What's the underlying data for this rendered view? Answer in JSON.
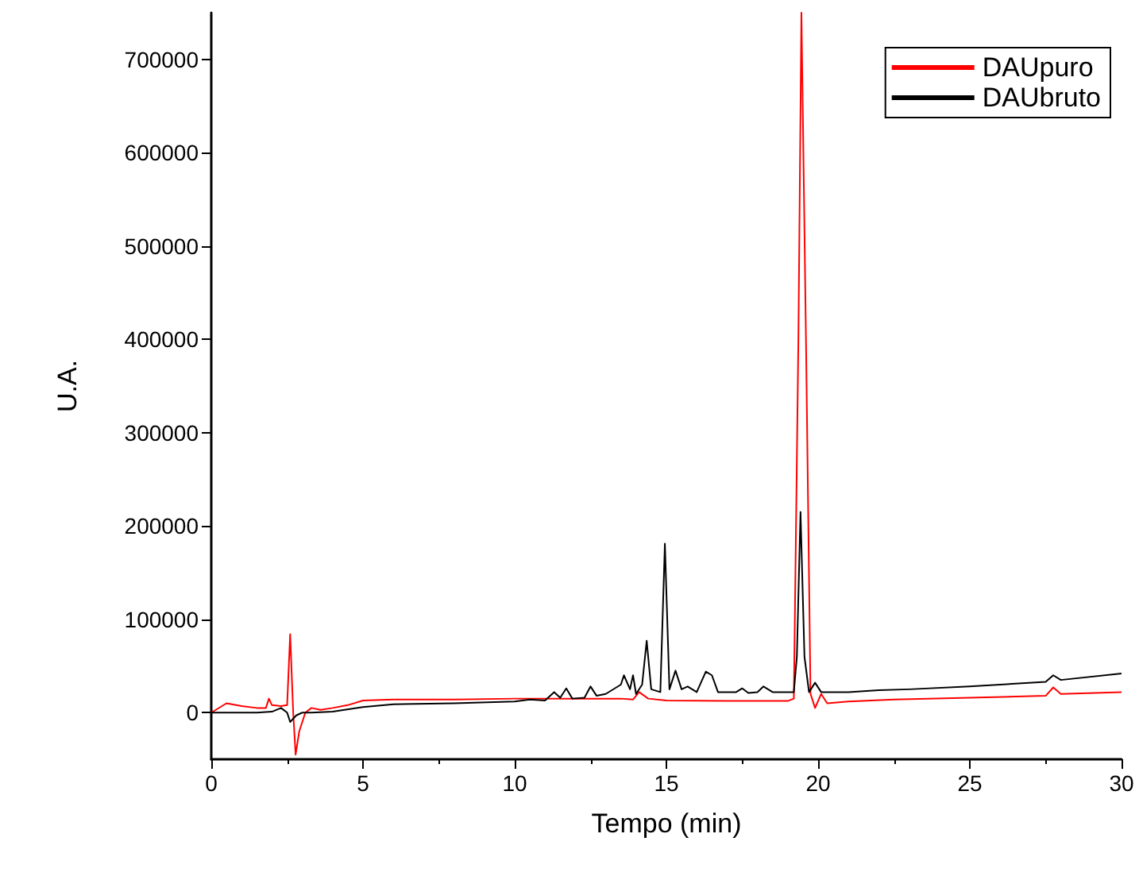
{
  "chart_data": {
    "type": "line",
    "xlabel": "Tempo (min)",
    "ylabel": "U.A.",
    "xlim": [
      0,
      30
    ],
    "xticks": [
      0,
      5,
      10,
      15,
      20,
      25,
      30
    ],
    "ylim": [
      -50000,
      750000
    ],
    "yticks": [
      0,
      100000,
      200000,
      300000,
      400000,
      500000,
      600000,
      700000
    ],
    "grid": false,
    "legend": "top right",
    "marker": "none",
    "line_style": "solid",
    "series": [
      {
        "name": "DAUpuro",
        "color": "#ff0000",
        "x": [
          0,
          0.5,
          1,
          1.5,
          1.8,
          1.9,
          2.0,
          2.3,
          2.5,
          2.6,
          2.7,
          2.78,
          2.9,
          3.1,
          3.3,
          3.6,
          4,
          4.5,
          5,
          6,
          8,
          10,
          12,
          13.5,
          13.9,
          14.1,
          14.4,
          15,
          17,
          19,
          19.2,
          19.35,
          19.45,
          19.6,
          19.75,
          19.9,
          20.1,
          20.3,
          21,
          22.5,
          25,
          27.5,
          27.75,
          28,
          30
        ],
        "values": [
          0,
          10000,
          7000,
          5000,
          5000,
          15000,
          8000,
          7000,
          8000,
          84000,
          0,
          -45000,
          -20000,
          0,
          5000,
          3000,
          5000,
          8000,
          13000,
          14000,
          14000,
          15000,
          15000,
          15000,
          14000,
          22000,
          15000,
          13000,
          12500,
          12500,
          15000,
          400000,
          750000,
          400000,
          20000,
          5000,
          20000,
          10000,
          12000,
          14000,
          16000,
          18000,
          27000,
          20000,
          22000
        ]
      },
      {
        "name": "DAUbruto",
        "color": "#000000",
        "x": [
          0,
          1.5,
          2.0,
          2.3,
          2.5,
          2.6,
          2.8,
          3.0,
          3.3,
          4,
          5,
          6,
          8,
          10,
          10.5,
          11,
          11.3,
          11.5,
          11.7,
          11.9,
          12.3,
          12.5,
          12.7,
          13,
          13.5,
          13.6,
          13.8,
          13.9,
          14.0,
          14.2,
          14.35,
          14.5,
          14.8,
          14.95,
          15.1,
          15.3,
          15.5,
          15.7,
          16.0,
          16.3,
          16.5,
          16.7,
          17.3,
          17.5,
          17.7,
          18.0,
          18.2,
          18.5,
          19.2,
          19.3,
          19.42,
          19.55,
          19.7,
          19.9,
          20.1,
          21,
          22,
          23,
          25,
          27.5,
          27.75,
          28,
          30
        ],
        "values": [
          0,
          0,
          1000,
          5000,
          0,
          -10000,
          -3000,
          0,
          0,
          1000,
          6000,
          9000,
          10000,
          12000,
          14000,
          13000,
          22000,
          16000,
          26000,
          15000,
          16000,
          28000,
          18000,
          20000,
          30000,
          40000,
          25000,
          40000,
          20000,
          30000,
          77000,
          25000,
          22000,
          181000,
          25000,
          45000,
          25000,
          28000,
          22000,
          44000,
          40000,
          22000,
          22000,
          26000,
          21000,
          22000,
          28000,
          22000,
          22000,
          60000,
          215000,
          60000,
          22000,
          32000,
          22000,
          22000,
          24000,
          25000,
          28000,
          33000,
          40000,
          35000,
          42000
        ]
      }
    ]
  }
}
